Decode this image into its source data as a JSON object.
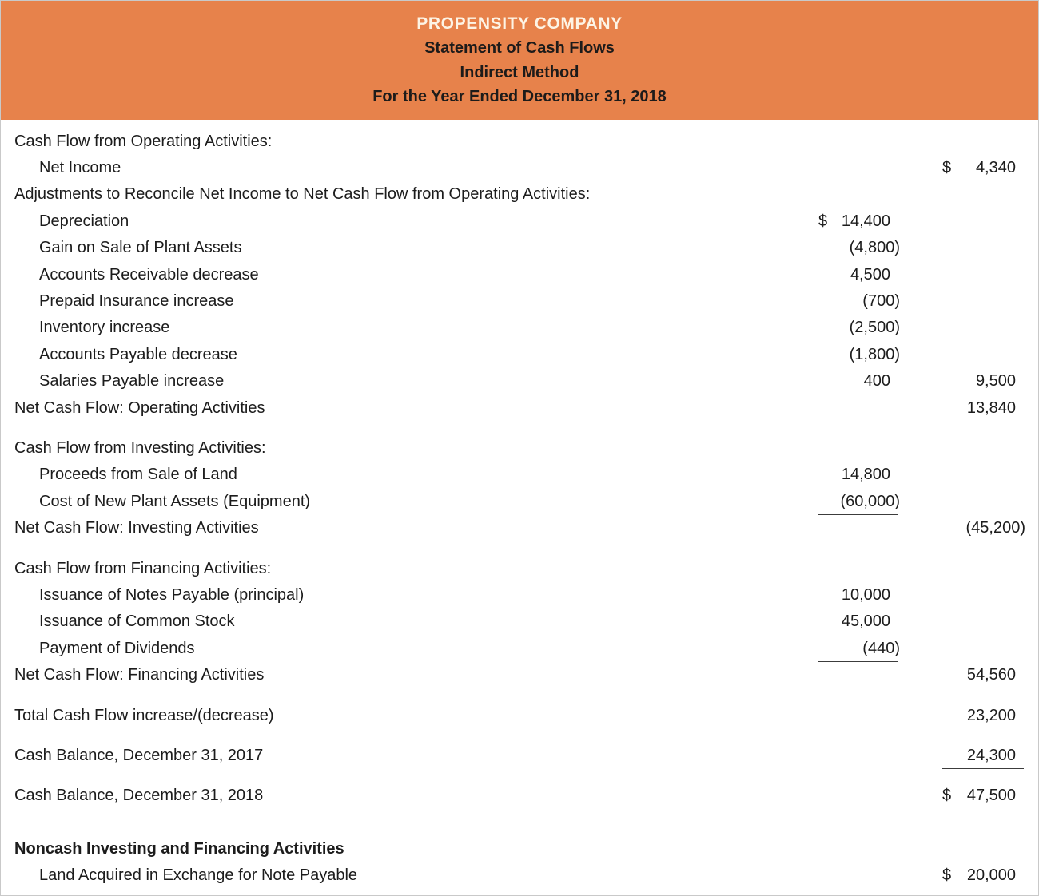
{
  "header": {
    "company": "PROPENSITY COMPANY",
    "statement": "Statement of Cash Flows",
    "method": "Indirect Method",
    "period": "For the Year Ended December 31, 2018"
  },
  "colors": {
    "header_bg": "#E7824B",
    "header_company_text": "#FDF4E5",
    "header_subtitle_text": "#1D1B1A",
    "body_text": "#1C1C1C",
    "rule_line": "#3C3C3C",
    "page_border": "#C9C9C9"
  },
  "rows": [
    {
      "label": "Cash Flow from Operating Activities:",
      "indent": 0
    },
    {
      "label": "Net Income",
      "indent": 1,
      "col2": {
        "currency": "$",
        "value": "4,340"
      }
    },
    {
      "label": "Adjustments to Reconcile Net Income to Net Cash Flow from Operating Activities:",
      "indent": 0
    },
    {
      "label": "Depreciation",
      "indent": 1,
      "col1": {
        "currency": "$",
        "value": "14,400"
      }
    },
    {
      "label": "Gain on Sale of Plant Assets",
      "indent": 1,
      "col1": {
        "value": "(4,800)"
      }
    },
    {
      "label": "Accounts Receivable decrease",
      "indent": 1,
      "col1": {
        "value": "4,500"
      }
    },
    {
      "label": "Prepaid Insurance increase",
      "indent": 1,
      "col1": {
        "value": "(700)"
      }
    },
    {
      "label": "Inventory increase",
      "indent": 1,
      "col1": {
        "value": "(2,500)"
      }
    },
    {
      "label": "Accounts Payable decrease",
      "indent": 1,
      "col1": {
        "value": "(1,800)"
      }
    },
    {
      "label": "Salaries Payable increase",
      "indent": 1,
      "col1": {
        "value": "400",
        "underline": true
      },
      "col2": {
        "value": "9,500",
        "underline": true
      }
    },
    {
      "label": "Net Cash Flow: Operating Activities",
      "indent": 0,
      "col2": {
        "value": "13,840"
      }
    },
    {
      "label": "Cash Flow from Investing Activities:",
      "indent": 0,
      "spacer": "small"
    },
    {
      "label": "Proceeds from Sale of Land",
      "indent": 1,
      "col1": {
        "value": "14,800"
      }
    },
    {
      "label": "Cost of New Plant Assets (Equipment)",
      "indent": 1,
      "col1": {
        "value": "(60,000)",
        "underline": true
      }
    },
    {
      "label": "Net Cash Flow: Investing Activities",
      "indent": 0,
      "col2": {
        "value": "(45,200)"
      }
    },
    {
      "label": "Cash Flow from Financing Activities:",
      "indent": 0,
      "spacer": "small"
    },
    {
      "label": "Issuance of Notes Payable (principal)",
      "indent": 1,
      "col1": {
        "value": "10,000"
      }
    },
    {
      "label": "Issuance of Common Stock",
      "indent": 1,
      "col1": {
        "value": "45,000"
      }
    },
    {
      "label": "Payment of Dividends",
      "indent": 1,
      "col1": {
        "value": "(440)",
        "underline": true
      }
    },
    {
      "label": "Net Cash Flow: Financing Activities",
      "indent": 0,
      "col2": {
        "value": "54,560",
        "underline": true
      }
    },
    {
      "label": "Total Cash Flow increase/(decrease)",
      "indent": 0,
      "spacer": "small",
      "col2": {
        "value": "23,200"
      }
    },
    {
      "label": "Cash Balance, December 31, 2017",
      "indent": 0,
      "spacer": "small",
      "col2": {
        "value": "24,300",
        "underline": true
      }
    },
    {
      "label": "Cash Balance, December 31, 2018",
      "indent": 0,
      "spacer": "small",
      "col2": {
        "currency": "$",
        "value": "47,500"
      }
    },
    {
      "label": "Noncash Investing and Financing Activities",
      "indent": 0,
      "bold": true,
      "spacer": "large"
    },
    {
      "label": "Land Acquired in Exchange for Note Payable",
      "indent": 1,
      "col2": {
        "currency": "$",
        "value": "20,000"
      }
    }
  ]
}
